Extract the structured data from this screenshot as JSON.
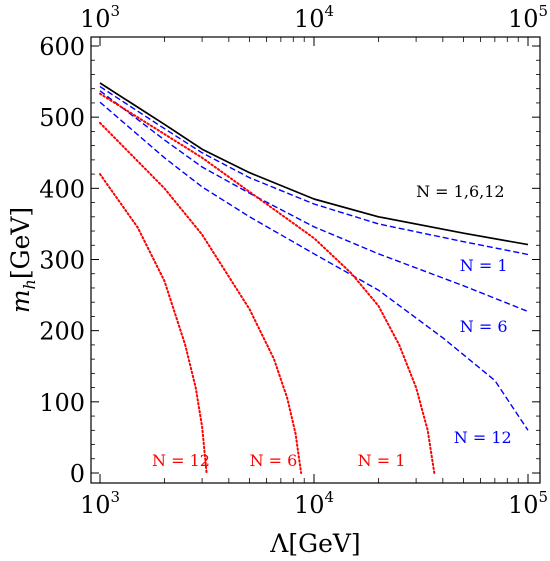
{
  "chart_data": {
    "type": "line",
    "xlabel": "Λ[GeV]",
    "ylabel_main": "m",
    "ylabel_sub": "h",
    "ylabel_unit": "[GeV]",
    "xscale": "log",
    "xlim": [
      1000,
      100000
    ],
    "ylim": [
      0,
      610
    ],
    "x_ticks": [
      {
        "value": 1000,
        "base": "10",
        "exp": "3"
      },
      {
        "value": 10000,
        "base": "10",
        "exp": "4"
      },
      {
        "value": 100000,
        "base": "10",
        "exp": "5"
      }
    ],
    "y_ticks": [
      0,
      100,
      200,
      300,
      400,
      500,
      600
    ],
    "colors": {
      "black": "#000000",
      "blue": "#0000ff",
      "red": "#ff0000"
    },
    "series": [
      {
        "group": "upper",
        "color": "#000000",
        "style": "solid",
        "points": [
          [
            1000,
            548
          ],
          [
            2000,
            490
          ],
          [
            3000,
            455
          ],
          [
            5000,
            422
          ],
          [
            10000,
            385
          ],
          [
            20000,
            360
          ],
          [
            50000,
            337
          ],
          [
            100000,
            321
          ]
        ]
      },
      {
        "group": "N=1",
        "color": "#0000ff",
        "style": "dashed",
        "points": [
          [
            1000,
            543
          ],
          [
            2000,
            484
          ],
          [
            3000,
            450
          ],
          [
            5000,
            415
          ],
          [
            10000,
            378
          ],
          [
            20000,
            350
          ],
          [
            50000,
            325
          ],
          [
            100000,
            307
          ]
        ]
      },
      {
        "group": "N=6",
        "color": "#0000ff",
        "style": "dashed",
        "points": [
          [
            1000,
            537
          ],
          [
            2000,
            468
          ],
          [
            3000,
            430
          ],
          [
            5000,
            393
          ],
          [
            10000,
            346
          ],
          [
            20000,
            308
          ],
          [
            50000,
            263
          ],
          [
            100000,
            227
          ]
        ]
      },
      {
        "group": "N=12",
        "color": "#0000ff",
        "style": "dashed",
        "points": [
          [
            1000,
            521
          ],
          [
            2000,
            443
          ],
          [
            3000,
            402
          ],
          [
            5000,
            360
          ],
          [
            10000,
            308
          ],
          [
            20000,
            257
          ],
          [
            40000,
            190
          ],
          [
            70000,
            130
          ],
          [
            100000,
            60
          ]
        ]
      },
      {
        "group": "N=1",
        "color": "#ff0000",
        "style": "dotted",
        "points": [
          [
            1000,
            533
          ],
          [
            3000,
            443
          ],
          [
            5000,
            395
          ],
          [
            10000,
            330
          ],
          [
            15000,
            280
          ],
          [
            20000,
            235
          ],
          [
            25000,
            180
          ],
          [
            30000,
            120
          ],
          [
            34000,
            60
          ],
          [
            36500,
            0
          ]
        ]
      },
      {
        "group": "N=6",
        "color": "#ff0000",
        "style": "dotted",
        "points": [
          [
            1000,
            492
          ],
          [
            2000,
            400
          ],
          [
            3000,
            335
          ],
          [
            5000,
            230
          ],
          [
            6500,
            160
          ],
          [
            7500,
            105
          ],
          [
            8200,
            55
          ],
          [
            8700,
            0
          ]
        ]
      },
      {
        "group": "N=12",
        "color": "#ff0000",
        "style": "dotted",
        "points": [
          [
            1000,
            420
          ],
          [
            1500,
            345
          ],
          [
            2000,
            270
          ],
          [
            2500,
            180
          ],
          [
            2800,
            120
          ],
          [
            3000,
            65
          ],
          [
            3150,
            0
          ]
        ]
      }
    ],
    "annotations": [
      {
        "text": "N = 1,6,12",
        "color": "#000000",
        "x": 30000,
        "y": 388
      },
      {
        "text": "N = 1",
        "color": "#0000ff",
        "x": 48000,
        "y": 284
      },
      {
        "text": "N = 6",
        "color": "#0000ff",
        "x": 48000,
        "y": 198
      },
      {
        "text": "N = 12",
        "color": "#0000ff",
        "x": 45000,
        "y": 42
      },
      {
        "text": "N = 12",
        "color": "#ff0000",
        "x": 1750,
        "y": 10
      },
      {
        "text": "N = 6",
        "color": "#ff0000",
        "x": 5000,
        "y": 10
      },
      {
        "text": "N = 1",
        "color": "#ff0000",
        "x": 16000,
        "y": 10
      }
    ]
  }
}
